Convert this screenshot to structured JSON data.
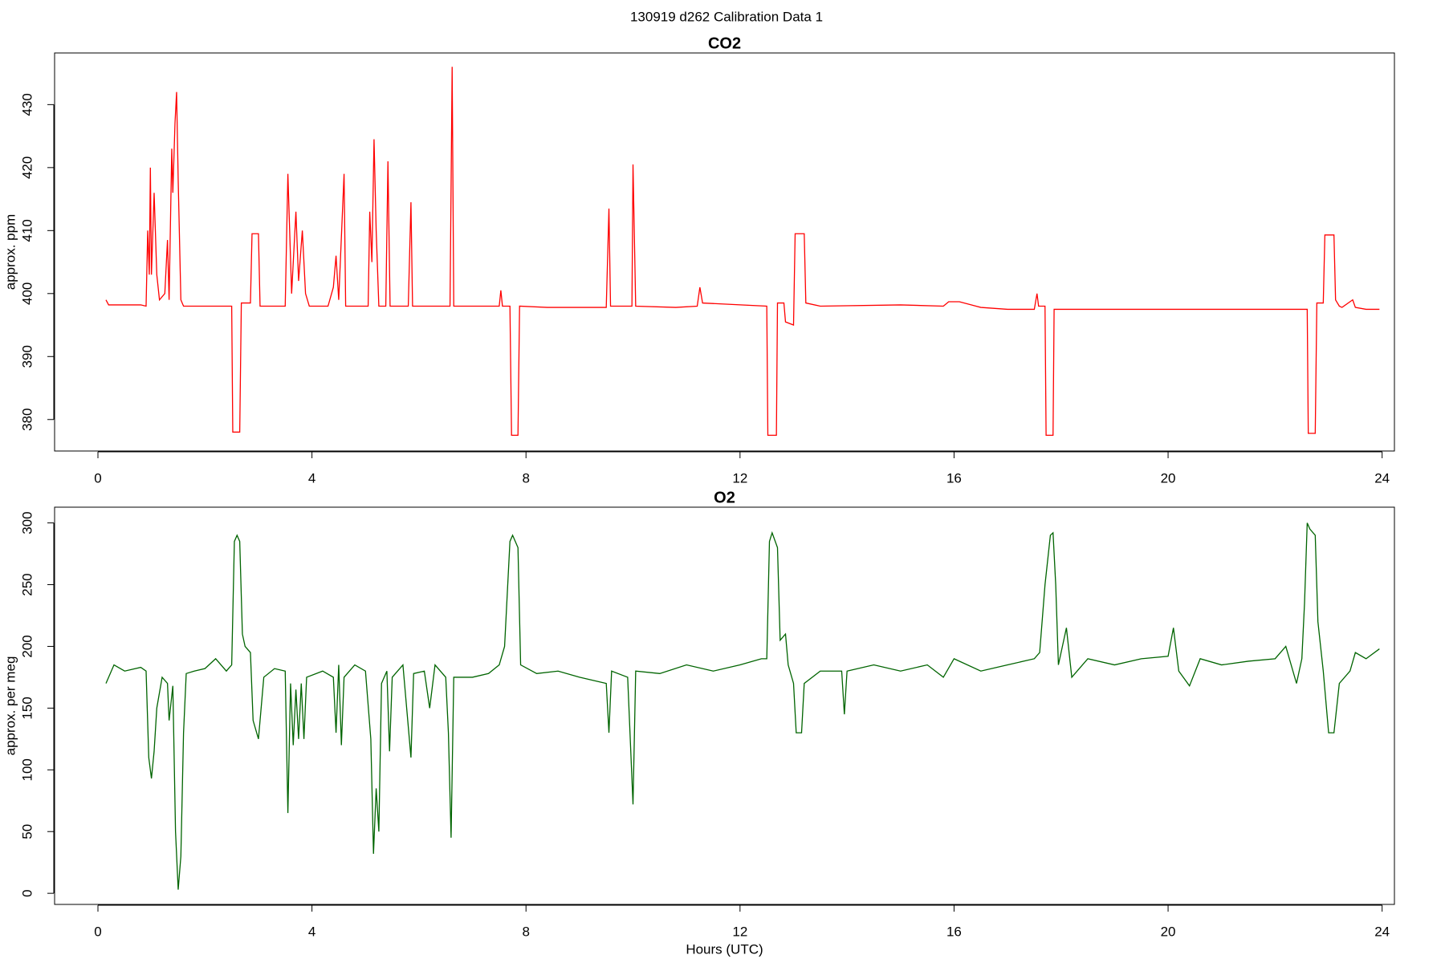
{
  "title": "130919   d262   Calibration Data 1",
  "chart_data": [
    {
      "type": "line",
      "title": "CO2",
      "ylabel": "approx. ppm",
      "color": "#ff0000",
      "xlim": [
        -0.81,
        24.23
      ],
      "xticks": [
        0,
        4,
        8,
        12,
        16,
        20,
        24
      ],
      "ylim": [
        375,
        438.2
      ],
      "yticks": [
        380,
        390,
        400,
        410,
        420,
        430
      ],
      "x": [
        0.15,
        0.2,
        0.8,
        0.9,
        0.93,
        0.96,
        0.98,
        1.0,
        1.05,
        1.1,
        1.15,
        1.25,
        1.3,
        1.33,
        1.38,
        1.4,
        1.44,
        1.47,
        1.5,
        1.55,
        1.6,
        2.5,
        2.52,
        2.65,
        2.68,
        2.85,
        2.88,
        3.0,
        3.03,
        3.5,
        3.55,
        3.62,
        3.7,
        3.75,
        3.82,
        3.88,
        3.95,
        4.3,
        4.4,
        4.45,
        4.5,
        4.6,
        4.63,
        5.05,
        5.08,
        5.12,
        5.16,
        5.2,
        5.25,
        5.38,
        5.42,
        5.46,
        5.8,
        5.85,
        5.88,
        6.58,
        6.62,
        6.65,
        7.5,
        7.53,
        7.56,
        7.7,
        7.73,
        7.85,
        7.88,
        8.4,
        9.5,
        9.55,
        9.58,
        9.98,
        10.0,
        10.05,
        10.8,
        11.2,
        11.25,
        11.3,
        12.5,
        12.52,
        12.68,
        12.7,
        12.82,
        12.85,
        13.0,
        13.03,
        13.2,
        13.23,
        13.5,
        15.0,
        15.8,
        15.9,
        16.1,
        16.5,
        17.0,
        17.5,
        17.55,
        17.58,
        17.7,
        17.72,
        17.85,
        17.87,
        20,
        22.6,
        22.62,
        22.75,
        22.78,
        22.9,
        22.93,
        23.1,
        23.13,
        23.2,
        23.25,
        23.45,
        23.5,
        23.7,
        23.95
      ],
      "values": [
        399,
        398.2,
        398.2,
        398,
        410,
        403,
        420,
        403,
        416,
        403,
        399,
        400,
        408.5,
        399,
        423,
        416,
        427,
        432,
        418,
        399,
        398,
        398,
        378,
        378,
        398.5,
        398.5,
        409.5,
        409.5,
        398,
        398,
        419,
        400,
        413,
        402,
        410,
        400,
        398,
        398,
        401,
        406,
        399,
        419,
        398,
        398,
        413,
        405,
        424.5,
        410,
        398,
        398,
        421,
        398,
        398,
        414.5,
        398,
        398,
        436,
        398,
        398,
        400.5,
        398,
        398,
        377.5,
        377.5,
        398,
        397.8,
        397.8,
        413.5,
        398,
        398,
        420.5,
        398,
        397.8,
        398,
        401,
        398.5,
        398,
        377.5,
        377.5,
        398.5,
        398.5,
        395.5,
        395,
        409.5,
        409.5,
        398.5,
        398,
        398.2,
        398,
        398.7,
        398.7,
        397.8,
        397.5,
        397.5,
        400,
        398,
        398,
        377.5,
        377.5,
        397.5,
        397.5,
        397.5,
        377.8,
        377.8,
        398.5,
        398.5,
        409.3,
        409.3,
        399,
        398,
        397.8,
        399,
        397.8,
        397.5,
        397.5
      ]
    },
    {
      "type": "line",
      "title": "O2",
      "ylabel": "approx. per meg",
      "xlabel": "Hours (UTC)",
      "color": "#006400",
      "xlim": [
        -0.81,
        24.23
      ],
      "xticks": [
        0,
        4,
        8,
        12,
        16,
        20,
        24
      ],
      "ylim": [
        -9,
        312.75
      ],
      "yticks": [
        0,
        50,
        100,
        150,
        200,
        250,
        300
      ],
      "x": [
        0.15,
        0.3,
        0.5,
        0.8,
        0.9,
        0.95,
        1.0,
        1.05,
        1.1,
        1.2,
        1.3,
        1.33,
        1.4,
        1.45,
        1.5,
        1.55,
        1.6,
        1.65,
        1.8,
        2.0,
        2.2,
        2.4,
        2.5,
        2.55,
        2.6,
        2.65,
        2.7,
        2.75,
        2.85,
        2.9,
        3.0,
        3.1,
        3.3,
        3.5,
        3.55,
        3.6,
        3.65,
        3.7,
        3.75,
        3.8,
        3.85,
        3.9,
        4.2,
        4.4,
        4.45,
        4.5,
        4.55,
        4.6,
        4.8,
        5.0,
        5.1,
        5.15,
        5.2,
        5.25,
        5.3,
        5.4,
        5.45,
        5.5,
        5.7,
        5.85,
        5.9,
        6.1,
        6.2,
        6.3,
        6.5,
        6.55,
        6.6,
        6.65,
        7.0,
        7.3,
        7.5,
        7.6,
        7.7,
        7.75,
        7.85,
        7.9,
        8.2,
        8.6,
        9.0,
        9.5,
        9.55,
        9.6,
        9.9,
        10.0,
        10.05,
        10.5,
        11.0,
        11.5,
        12.0,
        12.4,
        12.5,
        12.55,
        12.6,
        12.7,
        12.75,
        12.85,
        12.9,
        13.0,
        13.05,
        13.15,
        13.2,
        13.5,
        13.9,
        13.95,
        14.0,
        14.5,
        15.0,
        15.5,
        15.8,
        16.0,
        16.5,
        17.0,
        17.5,
        17.6,
        17.7,
        17.8,
        17.85,
        17.9,
        17.95,
        18.1,
        18.2,
        18.5,
        19,
        19.5,
        20.0,
        20.1,
        20.2,
        20.4,
        20.6,
        21.0,
        21.5,
        22.0,
        22.2,
        22.4,
        22.5,
        22.55,
        22.6,
        22.65,
        22.75,
        22.8,
        22.85,
        22.9,
        23.0,
        23.1,
        23.2,
        23.4,
        23.5,
        23.7,
        23.95
      ],
      "values": [
        170,
        185,
        180,
        183,
        180,
        110,
        93,
        115,
        150,
        175,
        170,
        140,
        168,
        50,
        3,
        30,
        130,
        178,
        180,
        182,
        190,
        180,
        185,
        285,
        290,
        285,
        210,
        200,
        195,
        140,
        125,
        175,
        182,
        180,
        65,
        170,
        120,
        165,
        125,
        170,
        125,
        175,
        180,
        175,
        130,
        185,
        120,
        175,
        185,
        180,
        125,
        32,
        85,
        50,
        170,
        180,
        115,
        175,
        185,
        110,
        178,
        180,
        150,
        185,
        175,
        130,
        45,
        175,
        175,
        178,
        185,
        200,
        285,
        290,
        280,
        185,
        178,
        180,
        175,
        170,
        130,
        180,
        175,
        72,
        180,
        178,
        185,
        180,
        185,
        190,
        190,
        285,
        292,
        280,
        205,
        210,
        185,
        170,
        130,
        130,
        170,
        180,
        180,
        145,
        180,
        185,
        180,
        185,
        175,
        190,
        180,
        185,
        190,
        195,
        250,
        290,
        292,
        250,
        185,
        215,
        175,
        190,
        185,
        190,
        192,
        215,
        180,
        168,
        190,
        185,
        188,
        190,
        200,
        170,
        190,
        235,
        300,
        295,
        290,
        220,
        200,
        180,
        130,
        130,
        170,
        180,
        195,
        190,
        198
      ]
    }
  ]
}
